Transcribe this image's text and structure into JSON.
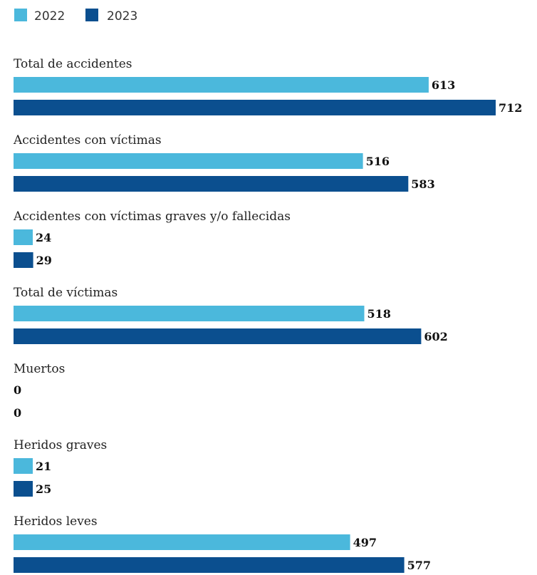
{
  "colors": {
    "2022": "#4bb8dc",
    "2023": "#0b4f8f"
  },
  "legend": [
    {
      "label": "2022",
      "color": "#4bb8dc"
    },
    {
      "label": "2023",
      "color": "#0b4f8f"
    }
  ],
  "chart_data": {
    "type": "bar",
    "orientation": "horizontal",
    "categories": [
      "Total de accidentes",
      "Accidentes con víctimas",
      "Accidentes con víctimas graves y/o fallecidas",
      "Total de víctimas",
      "Muertos",
      "Heridos graves",
      "Heridos leves"
    ],
    "series": [
      {
        "name": "2022",
        "values": [
          613,
          516,
          24,
          518,
          0,
          21,
          497
        ]
      },
      {
        "name": "2023",
        "values": [
          712,
          583,
          29,
          602,
          0,
          25,
          577
        ]
      }
    ],
    "value_labels": {
      "2022": [
        "613",
        "516",
        "24",
        "518",
        "0",
        "21",
        "497"
      ],
      "2023": [
        "712",
        "583",
        "29",
        "602",
        "0",
        "25",
        "577"
      ]
    },
    "xlim": [
      0,
      712
    ],
    "grid": false,
    "legend_position": "top-left",
    "title": "",
    "xlabel": "",
    "ylabel": ""
  }
}
